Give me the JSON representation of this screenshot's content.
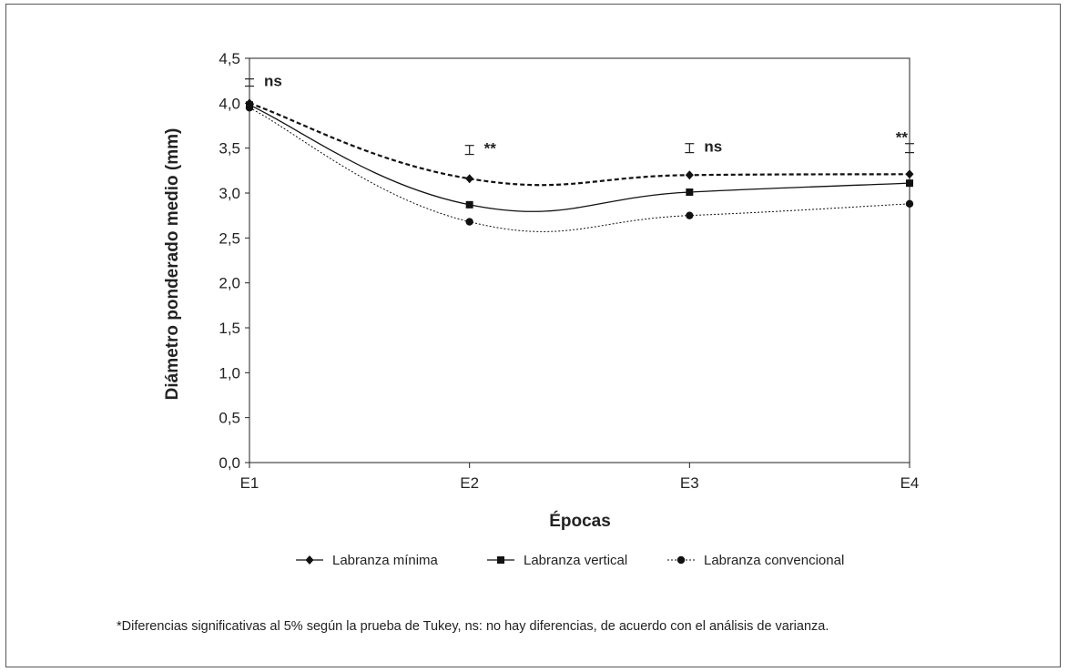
{
  "chart_data": {
    "type": "line",
    "xlabel": "Épocas",
    "ylabel": "Diámetro ponderado medio (mm)",
    "categories": [
      "E1",
      "E2",
      "E3",
      "E4"
    ],
    "ylim": [
      0,
      4.5
    ],
    "yticks": [
      "0,0",
      "0,5",
      "1,0",
      "1,5",
      "2,0",
      "2,5",
      "3,0",
      "3,5",
      "4,0",
      "4,5"
    ],
    "grid": false,
    "legend_position": "bottom",
    "series": [
      {
        "name": "Labranza mínima",
        "values": [
          4.0,
          3.16,
          3.2,
          3.21
        ],
        "marker": "diamond",
        "line": "dashed-bold",
        "color": "#111111"
      },
      {
        "name": "Labranza vertical",
        "values": [
          3.98,
          2.87,
          3.01,
          3.11
        ],
        "marker": "square",
        "line": "solid",
        "color": "#111111"
      },
      {
        "name": "Labranza convencional",
        "values": [
          3.95,
          2.68,
          2.75,
          2.88
        ],
        "marker": "circle",
        "line": "dotted",
        "color": "#111111"
      }
    ],
    "error_bars": [
      {
        "category": "E1",
        "center": 4.23,
        "half_width": 0.04
      },
      {
        "category": "E2",
        "center": 3.48,
        "half_width": 0.05
      },
      {
        "category": "E3",
        "center": 3.5,
        "half_width": 0.05
      },
      {
        "category": "E4",
        "center": 3.5,
        "half_width": 0.05
      }
    ],
    "annotations": [
      {
        "category": "E1",
        "text": "ns"
      },
      {
        "category": "E2",
        "text": "**"
      },
      {
        "category": "E3",
        "text": "ns"
      },
      {
        "category": "E4",
        "text": "**"
      }
    ]
  },
  "footnote": "*Diferencias significativas al 5% según la prueba de Tukey, ns: no hay diferencias, de acuerdo con el análisis de varianza."
}
